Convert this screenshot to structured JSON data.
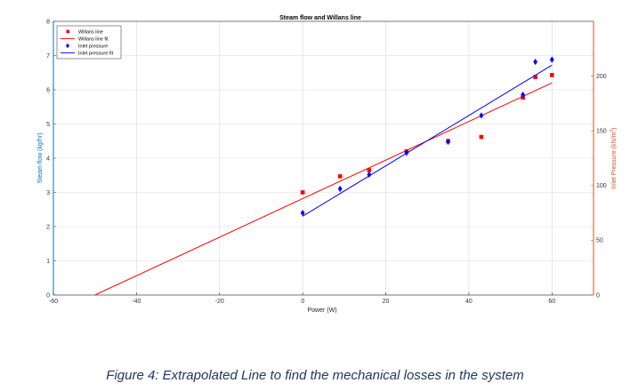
{
  "chart_data": {
    "type": "scatter",
    "title": "Steam flow and Willans line",
    "xlabel": "Power (W)",
    "ylabel_left": "Steam flow (kg/hr)",
    "ylabel_right": "Inlet Pressure (kN/m",
    "ylabel_right_superscript": "2",
    "ylabel_right_suffix": ")",
    "xlim": [
      -60,
      70
    ],
    "ylim_left": [
      0,
      8
    ],
    "ylim_right": [
      0,
      250
    ],
    "x_ticks": [
      -60,
      -40,
      -20,
      0,
      20,
      40,
      60
    ],
    "y_left_ticks": [
      0,
      1,
      2,
      3,
      4,
      5,
      6,
      7,
      8
    ],
    "y_right_ticks": [
      0,
      50,
      100,
      150,
      200
    ],
    "grid": true,
    "legend_position": "top-left",
    "series": [
      {
        "name": "Willans line",
        "kind": "markers",
        "marker": "square",
        "color": "#ff0000",
        "axis": "left",
        "x": [
          0,
          9,
          16,
          25,
          35,
          43,
          53,
          56,
          60
        ],
        "y": [
          3.0,
          3.47,
          3.65,
          4.2,
          4.5,
          4.62,
          5.77,
          6.37,
          6.43
        ]
      },
      {
        "name": "Willans line fit",
        "kind": "line",
        "color": "#ff0000",
        "axis": "left",
        "x": [
          -50,
          60
        ],
        "y": [
          0,
          6.2
        ]
      },
      {
        "name": "Inlet pressure",
        "kind": "markers",
        "marker": "diamond",
        "color": "#0000ff",
        "axis": "right",
        "x": [
          0,
          9,
          16,
          25,
          35,
          43,
          53,
          56,
          60
        ],
        "y": [
          75,
          97,
          110,
          130,
          140,
          164,
          183,
          213,
          215
        ]
      },
      {
        "name": "Inlet pressure fit",
        "kind": "line",
        "color": "#0000ff",
        "axis": "right",
        "x": [
          0,
          60
        ],
        "y": [
          72,
          210
        ]
      }
    ],
    "colors": {
      "left_axis": "#0072bd",
      "right_axis": "#d95319",
      "grid": "#d9d9d9"
    }
  },
  "caption": "Figure 4: Extrapolated Line to find the mechanical losses in the system"
}
